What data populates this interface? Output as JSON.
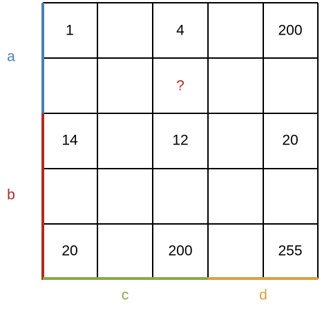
{
  "grid": {
    "rows": [
      [
        "1",
        null,
        "4",
        null,
        "200"
      ],
      [
        null,
        null,
        "?",
        null,
        null
      ],
      [
        "14",
        null,
        "12",
        null,
        "20"
      ],
      [
        null,
        null,
        null,
        null,
        null
      ],
      [
        "20",
        null,
        "200",
        null,
        "255"
      ]
    ]
  },
  "labels": {
    "a": "a",
    "b": "b",
    "c": "c",
    "d": "d"
  }
}
